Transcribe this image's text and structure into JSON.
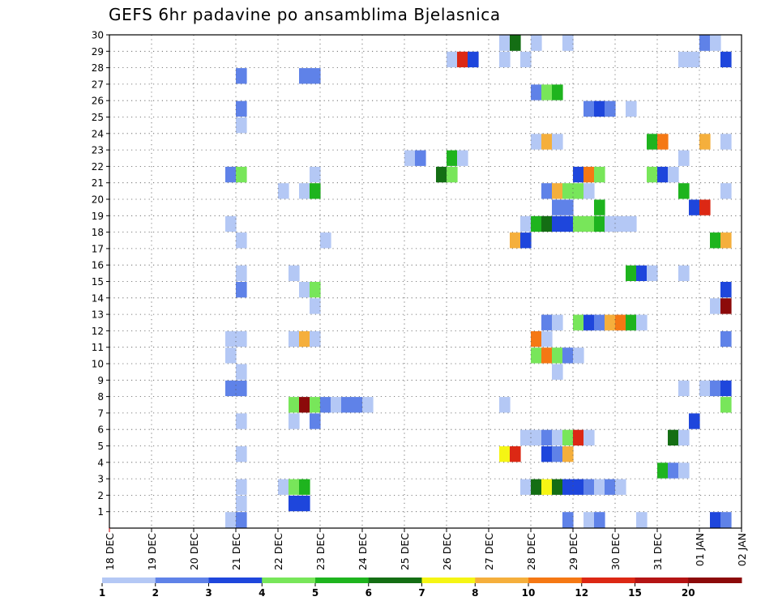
{
  "chart_data": {
    "type": "heatmap",
    "title": "GEFS 6hr padavine po ansamblima Bjelasnica",
    "x_tick_labels": [
      "18 DEC",
      "19 DEC",
      "20 DEC",
      "21 DEC",
      "22 DEC",
      "23 DEC",
      "24 DEC",
      "25 DEC",
      "26 DEC",
      "27 DEC",
      "28 DEC",
      "29 DEC",
      "30 DEC",
      "31 DEC",
      "01 JAN",
      "02 JAN"
    ],
    "y_tick_labels": [
      "1",
      "2",
      "3",
      "4",
      "5",
      "6",
      "7",
      "8",
      "9",
      "10",
      "11",
      "12",
      "13",
      "14",
      "15",
      "16",
      "17",
      "18",
      "19",
      "20",
      "21",
      "22",
      "23",
      "24",
      "25",
      "26",
      "27",
      "28",
      "29",
      "30"
    ],
    "time_step_hours": 6,
    "members": 30,
    "grid": true,
    "legend_position": "bottom",
    "color_levels": [
      {
        "color": "#b4c8f5",
        "level": 1
      },
      {
        "color": "#5f82e8",
        "level": 2
      },
      {
        "color": "#1e46dc",
        "level": 3
      },
      {
        "color": "#78e65a",
        "level": 4
      },
      {
        "color": "#1eb41e",
        "level": 5
      },
      {
        "color": "#146e14",
        "level": 6
      },
      {
        "color": "#f5f514",
        "level": 7
      },
      {
        "color": "#f5af3c",
        "level": 8
      },
      {
        "color": "#f57814",
        "level": 10
      },
      {
        "color": "#dc2814",
        "level": 12
      },
      {
        "color": "#b41414",
        "level": 15
      },
      {
        "color": "#8c0a0a",
        "level": 20
      }
    ],
    "legend_labels": [
      "1",
      "2",
      "3",
      "4",
      "5",
      "6",
      "7",
      "8",
      "10",
      "12",
      "15",
      "20"
    ],
    "cells": [
      {
        "member": 30,
        "step": 37,
        "level": 1
      },
      {
        "member": 30,
        "step": 38,
        "level": 6
      },
      {
        "member": 30,
        "step": 40,
        "level": 1
      },
      {
        "member": 30,
        "step": 43,
        "level": 1
      },
      {
        "member": 30,
        "step": 56,
        "level": 2
      },
      {
        "member": 30,
        "step": 57,
        "level": 1
      },
      {
        "member": 29,
        "step": 32,
        "level": 1
      },
      {
        "member": 29,
        "step": 33,
        "level": 12
      },
      {
        "member": 29,
        "step": 34,
        "level": 3
      },
      {
        "member": 29,
        "step": 37,
        "level": 1
      },
      {
        "member": 29,
        "step": 39,
        "level": 1
      },
      {
        "member": 29,
        "step": 54,
        "level": 1
      },
      {
        "member": 29,
        "step": 55,
        "level": 1
      },
      {
        "member": 29,
        "step": 58,
        "level": 3
      },
      {
        "member": 28,
        "step": 12,
        "level": 2
      },
      {
        "member": 28,
        "step": 18,
        "level": 2
      },
      {
        "member": 28,
        "step": 19,
        "level": 2
      },
      {
        "member": 27,
        "step": 40,
        "level": 2
      },
      {
        "member": 27,
        "step": 41,
        "level": 4
      },
      {
        "member": 27,
        "step": 42,
        "level": 5
      },
      {
        "member": 26,
        "step": 12,
        "level": 2
      },
      {
        "member": 26,
        "step": 45,
        "level": 2
      },
      {
        "member": 26,
        "step": 46,
        "level": 3
      },
      {
        "member": 26,
        "step": 47,
        "level": 2
      },
      {
        "member": 26,
        "step": 49,
        "level": 1
      },
      {
        "member": 25,
        "step": 12,
        "level": 1
      },
      {
        "member": 24,
        "step": 40,
        "level": 1
      },
      {
        "member": 24,
        "step": 41,
        "level": 8
      },
      {
        "member": 24,
        "step": 42,
        "level": 1
      },
      {
        "member": 24,
        "step": 51,
        "level": 5
      },
      {
        "member": 24,
        "step": 52,
        "level": 10
      },
      {
        "member": 24,
        "step": 56,
        "level": 8
      },
      {
        "member": 24,
        "step": 58,
        "level": 1
      },
      {
        "member": 23,
        "step": 28,
        "level": 1
      },
      {
        "member": 23,
        "step": 29,
        "level": 2
      },
      {
        "member": 23,
        "step": 32,
        "level": 5
      },
      {
        "member": 23,
        "step": 33,
        "level": 1
      },
      {
        "member": 23,
        "step": 54,
        "level": 1
      },
      {
        "member": 22,
        "step": 11,
        "level": 2
      },
      {
        "member": 22,
        "step": 12,
        "level": 4
      },
      {
        "member": 22,
        "step": 19,
        "level": 1
      },
      {
        "member": 22,
        "step": 31,
        "level": 6
      },
      {
        "member": 22,
        "step": 32,
        "level": 4
      },
      {
        "member": 22,
        "step": 44,
        "level": 3
      },
      {
        "member": 22,
        "step": 45,
        "level": 10
      },
      {
        "member": 22,
        "step": 46,
        "level": 4
      },
      {
        "member": 22,
        "step": 51,
        "level": 4
      },
      {
        "member": 22,
        "step": 52,
        "level": 3
      },
      {
        "member": 22,
        "step": 53,
        "level": 1
      },
      {
        "member": 21,
        "step": 16,
        "level": 1
      },
      {
        "member": 21,
        "step": 18,
        "level": 1
      },
      {
        "member": 21,
        "step": 19,
        "level": 5
      },
      {
        "member": 21,
        "step": 41,
        "level": 2
      },
      {
        "member": 21,
        "step": 42,
        "level": 8
      },
      {
        "member": 21,
        "step": 43,
        "level": 4
      },
      {
        "member": 21,
        "step": 44,
        "level": 4
      },
      {
        "member": 21,
        "step": 45,
        "level": 1
      },
      {
        "member": 21,
        "step": 54,
        "level": 5
      },
      {
        "member": 21,
        "step": 58,
        "level": 1
      },
      {
        "member": 20,
        "step": 42,
        "level": 2
      },
      {
        "member": 20,
        "step": 43,
        "level": 2
      },
      {
        "member": 20,
        "step": 46,
        "level": 5
      },
      {
        "member": 20,
        "step": 55,
        "level": 3
      },
      {
        "member": 20,
        "step": 56,
        "level": 12
      },
      {
        "member": 19,
        "step": 11,
        "level": 1
      },
      {
        "member": 19,
        "step": 39,
        "level": 1
      },
      {
        "member": 19,
        "step": 40,
        "level": 5
      },
      {
        "member": 19,
        "step": 41,
        "level": 6
      },
      {
        "member": 19,
        "step": 42,
        "level": 3
      },
      {
        "member": 19,
        "step": 43,
        "level": 3
      },
      {
        "member": 19,
        "step": 44,
        "level": 4
      },
      {
        "member": 19,
        "step": 45,
        "level": 4
      },
      {
        "member": 19,
        "step": 46,
        "level": 5
      },
      {
        "member": 19,
        "step": 47,
        "level": 1
      },
      {
        "member": 19,
        "step": 48,
        "level": 1
      },
      {
        "member": 19,
        "step": 49,
        "level": 1
      },
      {
        "member": 18,
        "step": 12,
        "level": 1
      },
      {
        "member": 18,
        "step": 20,
        "level": 1
      },
      {
        "member": 18,
        "step": 38,
        "level": 8
      },
      {
        "member": 18,
        "step": 39,
        "level": 3
      },
      {
        "member": 18,
        "step": 57,
        "level": 5
      },
      {
        "member": 18,
        "step": 58,
        "level": 8
      },
      {
        "member": 16,
        "step": 12,
        "level": 1
      },
      {
        "member": 16,
        "step": 17,
        "level": 1
      },
      {
        "member": 16,
        "step": 49,
        "level": 5
      },
      {
        "member": 16,
        "step": 50,
        "level": 3
      },
      {
        "member": 16,
        "step": 51,
        "level": 1
      },
      {
        "member": 16,
        "step": 54,
        "level": 1
      },
      {
        "member": 15,
        "step": 12,
        "level": 2
      },
      {
        "member": 15,
        "step": 18,
        "level": 1
      },
      {
        "member": 15,
        "step": 19,
        "level": 4
      },
      {
        "member": 15,
        "step": 58,
        "level": 3
      },
      {
        "member": 14,
        "step": 19,
        "level": 1
      },
      {
        "member": 14,
        "step": 57,
        "level": 1
      },
      {
        "member": 14,
        "step": 58,
        "level": 20
      },
      {
        "member": 13,
        "step": 41,
        "level": 2
      },
      {
        "member": 13,
        "step": 42,
        "level": 1
      },
      {
        "member": 13,
        "step": 44,
        "level": 4
      },
      {
        "member": 13,
        "step": 45,
        "level": 3
      },
      {
        "member": 13,
        "step": 46,
        "level": 2
      },
      {
        "member": 13,
        "step": 47,
        "level": 8
      },
      {
        "member": 13,
        "step": 48,
        "level": 10
      },
      {
        "member": 13,
        "step": 49,
        "level": 5
      },
      {
        "member": 13,
        "step": 50,
        "level": 1
      },
      {
        "member": 12,
        "step": 11,
        "level": 1
      },
      {
        "member": 12,
        "step": 12,
        "level": 1
      },
      {
        "member": 12,
        "step": 17,
        "level": 1
      },
      {
        "member": 12,
        "step": 18,
        "level": 8
      },
      {
        "member": 12,
        "step": 19,
        "level": 1
      },
      {
        "member": 12,
        "step": 40,
        "level": 10
      },
      {
        "member": 12,
        "step": 41,
        "level": 1
      },
      {
        "member": 12,
        "step": 58,
        "level": 2
      },
      {
        "member": 11,
        "step": 11,
        "level": 1
      },
      {
        "member": 11,
        "step": 40,
        "level": 4
      },
      {
        "member": 11,
        "step": 41,
        "level": 10
      },
      {
        "member": 11,
        "step": 42,
        "level": 4
      },
      {
        "member": 11,
        "step": 43,
        "level": 2
      },
      {
        "member": 11,
        "step": 44,
        "level": 1
      },
      {
        "member": 10,
        "step": 12,
        "level": 1
      },
      {
        "member": 10,
        "step": 42,
        "level": 1
      },
      {
        "member": 9,
        "step": 11,
        "level": 2
      },
      {
        "member": 9,
        "step": 12,
        "level": 2
      },
      {
        "member": 9,
        "step": 54,
        "level": 1
      },
      {
        "member": 9,
        "step": 56,
        "level": 1
      },
      {
        "member": 9,
        "step": 57,
        "level": 2
      },
      {
        "member": 9,
        "step": 58,
        "level": 3
      },
      {
        "member": 8,
        "step": 17,
        "level": 4
      },
      {
        "member": 8,
        "step": 18,
        "level": 20
      },
      {
        "member": 8,
        "step": 19,
        "level": 4
      },
      {
        "member": 8,
        "step": 20,
        "level": 2
      },
      {
        "member": 8,
        "step": 21,
        "level": 1
      },
      {
        "member": 8,
        "step": 22,
        "level": 2
      },
      {
        "member": 8,
        "step": 23,
        "level": 2
      },
      {
        "member": 8,
        "step": 24,
        "level": 1
      },
      {
        "member": 8,
        "step": 37,
        "level": 1
      },
      {
        "member": 8,
        "step": 58,
        "level": 4
      },
      {
        "member": 7,
        "step": 12,
        "level": 1
      },
      {
        "member": 7,
        "step": 17,
        "level": 1
      },
      {
        "member": 7,
        "step": 19,
        "level": 2
      },
      {
        "member": 7,
        "step": 55,
        "level": 3
      },
      {
        "member": 6,
        "step": 39,
        "level": 1
      },
      {
        "member": 6,
        "step": 40,
        "level": 1
      },
      {
        "member": 6,
        "step": 41,
        "level": 2
      },
      {
        "member": 6,
        "step": 42,
        "level": 1
      },
      {
        "member": 6,
        "step": 43,
        "level": 4
      },
      {
        "member": 6,
        "step": 44,
        "level": 12
      },
      {
        "member": 6,
        "step": 45,
        "level": 1
      },
      {
        "member": 6,
        "step": 53,
        "level": 6
      },
      {
        "member": 6,
        "step": 54,
        "level": 1
      },
      {
        "member": 5,
        "step": 12,
        "level": 1
      },
      {
        "member": 5,
        "step": 37,
        "level": 7
      },
      {
        "member": 5,
        "step": 38,
        "level": 12
      },
      {
        "member": 5,
        "step": 41,
        "level": 3
      },
      {
        "member": 5,
        "step": 42,
        "level": 2
      },
      {
        "member": 5,
        "step": 43,
        "level": 8
      },
      {
        "member": 4,
        "step": 52,
        "level": 5
      },
      {
        "member": 4,
        "step": 53,
        "level": 2
      },
      {
        "member": 4,
        "step": 54,
        "level": 1
      },
      {
        "member": 3,
        "step": 12,
        "level": 1
      },
      {
        "member": 3,
        "step": 16,
        "level": 1
      },
      {
        "member": 3,
        "step": 17,
        "level": 4
      },
      {
        "member": 3,
        "step": 18,
        "level": 5
      },
      {
        "member": 3,
        "step": 39,
        "level": 1
      },
      {
        "member": 3,
        "step": 40,
        "level": 6
      },
      {
        "member": 3,
        "step": 41,
        "level": 7
      },
      {
        "member": 3,
        "step": 42,
        "level": 6
      },
      {
        "member": 3,
        "step": 43,
        "level": 3
      },
      {
        "member": 3,
        "step": 44,
        "level": 3
      },
      {
        "member": 3,
        "step": 45,
        "level": 2
      },
      {
        "member": 3,
        "step": 46,
        "level": 1
      },
      {
        "member": 3,
        "step": 47,
        "level": 2
      },
      {
        "member": 3,
        "step": 48,
        "level": 1
      },
      {
        "member": 2,
        "step": 12,
        "level": 1
      },
      {
        "member": 2,
        "step": 17,
        "level": 3
      },
      {
        "member": 2,
        "step": 18,
        "level": 3
      },
      {
        "member": 1,
        "step": 11,
        "level": 1
      },
      {
        "member": 1,
        "step": 12,
        "level": 2
      },
      {
        "member": 1,
        "step": 43,
        "level": 2
      },
      {
        "member": 1,
        "step": 45,
        "level": 1
      },
      {
        "member": 1,
        "step": 46,
        "level": 2
      },
      {
        "member": 1,
        "step": 50,
        "level": 1
      },
      {
        "member": 1,
        "step": 57,
        "level": 3
      },
      {
        "member": 1,
        "step": 58,
        "level": 2
      }
    ]
  }
}
